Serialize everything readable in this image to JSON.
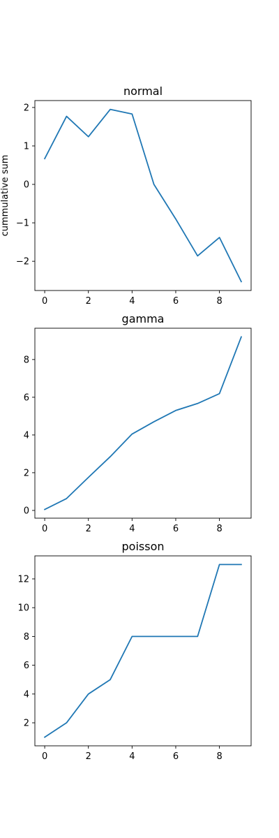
{
  "chart_data": [
    {
      "type": "line",
      "title": "normal",
      "xlabel": "",
      "ylabel": "cummulative sum",
      "x": [
        0,
        1,
        2,
        3,
        4,
        5,
        6,
        7,
        8,
        9
      ],
      "series": [
        {
          "values": [
            0.67,
            1.77,
            1.24,
            1.95,
            1.83,
            0.0,
            -0.9,
            -1.86,
            -1.38,
            -2.53
          ],
          "color": "#1f77b4"
        }
      ],
      "xlim": [
        -0.45,
        9.45
      ],
      "ylim": [
        -2.76,
        2.18
      ],
      "xticks": [
        0,
        2,
        4,
        6,
        8
      ],
      "yticks": [
        -2,
        -1,
        0,
        1,
        2
      ],
      "xtick_labels": [
        "0",
        "2",
        "4",
        "6",
        "8"
      ],
      "ytick_labels": [
        "−2",
        "−1",
        "0",
        "1",
        "2"
      ],
      "grid": false
    },
    {
      "type": "line",
      "title": "gamma",
      "xlabel": "",
      "ylabel": "",
      "x": [
        0,
        1,
        2,
        3,
        4,
        5,
        6,
        7,
        8,
        9
      ],
      "series": [
        {
          "values": [
            0.05,
            0.63,
            1.75,
            2.85,
            4.05,
            4.7,
            5.3,
            5.67,
            6.19,
            9.2
          ],
          "color": "#1f77b4"
        }
      ],
      "xlim": [
        -0.45,
        9.45
      ],
      "ylim": [
        -0.41,
        9.66
      ],
      "xticks": [
        0,
        2,
        4,
        6,
        8
      ],
      "yticks": [
        0,
        2,
        4,
        6,
        8
      ],
      "xtick_labels": [
        "0",
        "2",
        "4",
        "6",
        "8"
      ],
      "ytick_labels": [
        "0",
        "2",
        "4",
        "6",
        "8"
      ],
      "grid": false
    },
    {
      "type": "line",
      "title": "poisson",
      "xlabel": "",
      "ylabel": "",
      "x": [
        0,
        1,
        2,
        3,
        4,
        5,
        6,
        7,
        8,
        9
      ],
      "series": [
        {
          "values": [
            1,
            2,
            4,
            5,
            8,
            8,
            8,
            8,
            13,
            13
          ],
          "color": "#1f77b4"
        }
      ],
      "xlim": [
        -0.45,
        9.45
      ],
      "ylim": [
        0.4,
        13.6
      ],
      "xticks": [
        0,
        2,
        4,
        6,
        8
      ],
      "yticks": [
        2,
        4,
        6,
        8,
        10,
        12
      ],
      "xtick_labels": [
        "0",
        "2",
        "4",
        "6",
        "8"
      ],
      "ytick_labels": [
        "2",
        "4",
        "6",
        "8",
        "10",
        "12"
      ],
      "grid": false
    }
  ]
}
